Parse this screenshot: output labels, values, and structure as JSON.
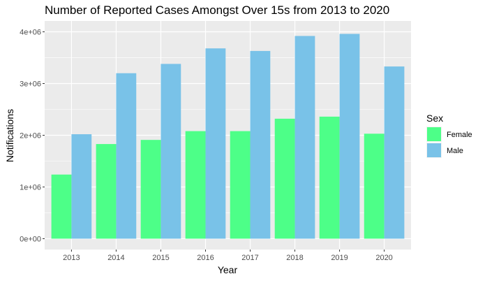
{
  "chart_data": {
    "type": "bar",
    "title": "Number of Reported Cases Amongst Over 15s from 2013 to 2020",
    "xlabel": "Year",
    "ylabel": "Notifications",
    "categories": [
      "2013",
      "2014",
      "2015",
      "2016",
      "2017",
      "2018",
      "2019",
      "2020"
    ],
    "series": [
      {
        "name": "Female",
        "color": "#4dff88",
        "values": [
          1240000,
          1830000,
          1910000,
          2080000,
          2080000,
          2320000,
          2360000,
          2030000
        ]
      },
      {
        "name": "Male",
        "color": "#79c2e8",
        "values": [
          2020000,
          3200000,
          3380000,
          3680000,
          3630000,
          3920000,
          3960000,
          3330000
        ]
      }
    ],
    "yticks": [
      0,
      1000000,
      2000000,
      3000000,
      4000000
    ],
    "ytick_labels": [
      "0e+00",
      "1e+06",
      "2e+06",
      "3e+06",
      "4e+06"
    ],
    "ylim": [
      0,
      4200000
    ],
    "grid": true,
    "legend": {
      "title": "Sex",
      "position": "right"
    }
  }
}
